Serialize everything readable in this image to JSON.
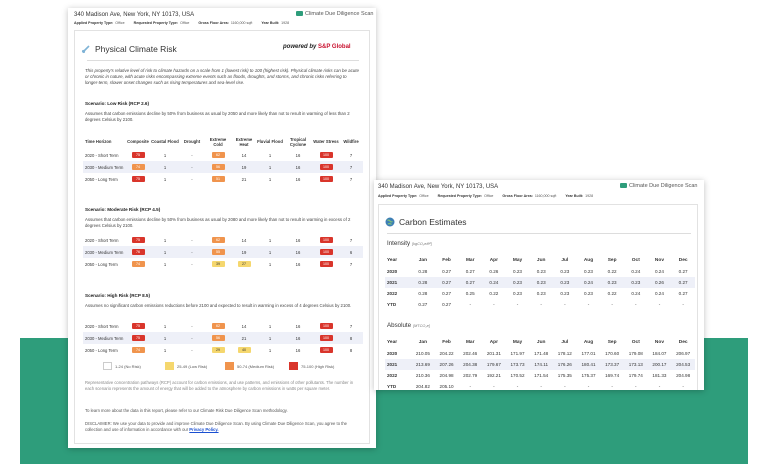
{
  "colors": {
    "green": "#2e9d7b",
    "low": "#ffffff",
    "low_med": "#f5d76e",
    "med_high": "#f0944d",
    "high": "#d9352b",
    "row_alt": "#eef0f8",
    "link": "#1a4fd1",
    "sp_red": "#c8102e"
  },
  "brand": {
    "icon": "msci-logo-icon",
    "name": "Climate Due Diligence Scan"
  },
  "report1": {
    "address": "340 Madison Ave, New York, NY 10173, USA",
    "meta": [
      {
        "label": "Applied Property Type:",
        "value": "Office"
      },
      {
        "label": "Requested Property Type:",
        "value": "Office"
      },
      {
        "label": "Gross Floor Area:",
        "value": "1160,000 sqft"
      },
      {
        "label": "Year Built:",
        "value": "1928"
      }
    ],
    "card_title": "Physical Climate Risk",
    "card_icon": "thermometer-icon",
    "powered_by": "powered by",
    "sp_logo": "S&P Global",
    "intro": "This property's relative level of risk to climate hazards on a scale from 1 (lowest risk) to 100 (highest risk). Physical climate risks can be acute or chronic in nature, with acute risks encompassing extreme events such as floods, droughts, and storms, and chronic risks referring to longer-term, slower onset changes such as rising temperatures and sea-level rise.",
    "columns": [
      "Time Horizon",
      "Composite",
      "Coastal Flood",
      "Drought",
      "Extreme Cold",
      "Extreme Heat",
      "Fluvial Flood",
      "Tropical Cyclone",
      "Water Stress",
      "Wildfire"
    ],
    "scenarios": [
      {
        "title": "Scenario: Low Risk (RCP 2.6)",
        "desc": "Assumes that carbon emissions decline by 50% from business as usual by 2050 and more likely than not to result in warming of less than 2 degrees Celsius by 2100.",
        "rows": [
          {
            "label": "2020 - Short Term",
            "composite": "75",
            "coastal": "1",
            "drought": "-",
            "cold": "62",
            "heat": "14",
            "fluvial": "1",
            "cyclone": "16",
            "water": "100",
            "wildfire": "7"
          },
          {
            "label": "2030 - Medium Term",
            "composite": "74",
            "coastal": "1",
            "drought": "-",
            "cold": "56",
            "heat": "19",
            "fluvial": "1",
            "cyclone": "16",
            "water": "100",
            "wildfire": "7"
          },
          {
            "label": "2050 - Long Term",
            "composite": "75",
            "coastal": "1",
            "drought": "-",
            "cold": "51",
            "heat": "21",
            "fluvial": "1",
            "cyclone": "16",
            "water": "100",
            "wildfire": "7"
          }
        ]
      },
      {
        "title": "Scenario: Moderate Risk (RCP 4.5)",
        "desc": "Assumes that carbon emissions decline by 50% from business as usual by 2080 and more likely than not to result in warming in excess of 2 degrees Celsius by 2100.",
        "rows": [
          {
            "label": "2020 - Short Term",
            "composite": "75",
            "coastal": "1",
            "drought": "-",
            "cold": "62",
            "heat": "14",
            "fluvial": "1",
            "cyclone": "16",
            "water": "100",
            "wildfire": "7"
          },
          {
            "label": "2030 - Medium Term",
            "composite": "76",
            "coastal": "1",
            "drought": "-",
            "cold": "55",
            "heat": "19",
            "fluvial": "1",
            "cyclone": "16",
            "water": "100",
            "wildfire": "6"
          },
          {
            "label": "2050 - Long Term",
            "composite": "74",
            "coastal": "1",
            "drought": "-",
            "cold": "39",
            "heat": "27",
            "fluvial": "1",
            "cyclone": "16",
            "water": "100",
            "wildfire": "7"
          }
        ]
      },
      {
        "title": "Scenario: High Risk (RCP 8.5)",
        "desc": "Assumes no significant carbon emissions reductions before 2100 and expected to result in warming in excess of 4 degrees Celsius by 2100.",
        "rows": [
          {
            "label": "2020 - Short Term",
            "composite": "75",
            "coastal": "1",
            "drought": "-",
            "cold": "62",
            "heat": "14",
            "fluvial": "1",
            "cyclone": "16",
            "water": "100",
            "wildfire": "7"
          },
          {
            "label": "2030 - Medium Term",
            "composite": "75",
            "coastal": "1",
            "drought": "-",
            "cold": "56",
            "heat": "21",
            "fluvial": "1",
            "cyclone": "16",
            "water": "100",
            "wildfire": "8"
          },
          {
            "label": "2050 - Long Term",
            "composite": "74",
            "coastal": "1",
            "drought": "-",
            "cold": "29",
            "heat": "40",
            "fluvial": "1",
            "cyclone": "16",
            "water": "100",
            "wildfire": "8"
          }
        ]
      }
    ],
    "legend": [
      "1-24 (No Risk)",
      "25-49 (Low Risk)",
      "50-74 (Medium Risk)",
      "75-100 (High Risk)"
    ],
    "rcp_note": "Representative concentration pathways (RCP) account for carbon emissions, and use patterns, and emissions of other pollutants. The number in each scenario represents the amount of energy that will be added to the atmosphere by carbon emissions in watts per square meter.",
    "learn_more": "To learn more about the data in this report, please refer to our Climate Risk Due Diligence Scan methodology.",
    "disclaimer": "DISCLAIMER: We use your data to provide and improve Climate Due Diligence Scan. By using Climate Due Diligence Scan, you agree to the collection and use of information in accordance with our",
    "privacy_link": "Privacy Policy."
  },
  "report2": {
    "address": "340 Madison Ave, New York, NY 10173, USA",
    "meta": [
      {
        "label": "Applied Property Type:",
        "value": "Office"
      },
      {
        "label": "Requested Property Type:",
        "value": "Office"
      },
      {
        "label": "Gross Floor Area:",
        "value": "1160,000 sqft"
      },
      {
        "label": "Year Built:",
        "value": "1928"
      }
    ],
    "card_title": "Carbon Estimates",
    "card_icon": "globe-icon",
    "intensity_title": "Intensity",
    "intensity_unit": "[kgCO₂e/ft²]",
    "absolute_title": "Absolute",
    "absolute_unit": "[MTCO₂e]",
    "months": [
      "Year",
      "Jan",
      "Feb",
      "Mar",
      "Apr",
      "May",
      "Jun",
      "Jul",
      "Aug",
      "Sep",
      "Oct",
      "Nov",
      "Dec"
    ],
    "intensity_rows": [
      [
        "2020",
        "0.28",
        "0.27",
        "0.27",
        "0.26",
        "0.23",
        "0.23",
        "0.23",
        "0.23",
        "0.22",
        "0.24",
        "0.24",
        "0.27"
      ],
      [
        "2021",
        "0.28",
        "0.27",
        "0.27",
        "0.24",
        "0.23",
        "0.23",
        "0.23",
        "0.24",
        "0.23",
        "0.23",
        "0.26",
        "0.27"
      ],
      [
        "2022",
        "0.28",
        "0.27",
        "0.25",
        "0.22",
        "0.23",
        "0.23",
        "0.23",
        "0.23",
        "0.22",
        "0.24",
        "0.24",
        "0.27"
      ],
      [
        "YTD",
        "0.27",
        "0.27",
        "-",
        "-",
        "-",
        "-",
        "-",
        "-",
        "-",
        "-",
        "-",
        "-"
      ]
    ],
    "absolute_rows": [
      [
        "2020",
        "210.05",
        "204.22",
        "202.46",
        "201.31",
        "171.97",
        "171.48",
        "178.12",
        "177.01",
        "170.60",
        "179.08",
        "184.07",
        "206.97"
      ],
      [
        "2021",
        "213.69",
        "207.26",
        "204.38",
        "179.67",
        "173.73",
        "174.11",
        "176.26",
        "180.41",
        "173.37",
        "173.13",
        "200.17",
        "204.53"
      ],
      [
        "2022",
        "210.36",
        "204.98",
        "202.79",
        "192.21",
        "170.52",
        "171.54",
        "175.35",
        "175.37",
        "169.74",
        "179.74",
        "181.33",
        "204.98"
      ],
      [
        "YTD",
        "204.82",
        "205.10",
        "-",
        "-",
        "-",
        "-",
        "-",
        "-",
        "-",
        "-",
        "-",
        "-"
      ]
    ]
  }
}
